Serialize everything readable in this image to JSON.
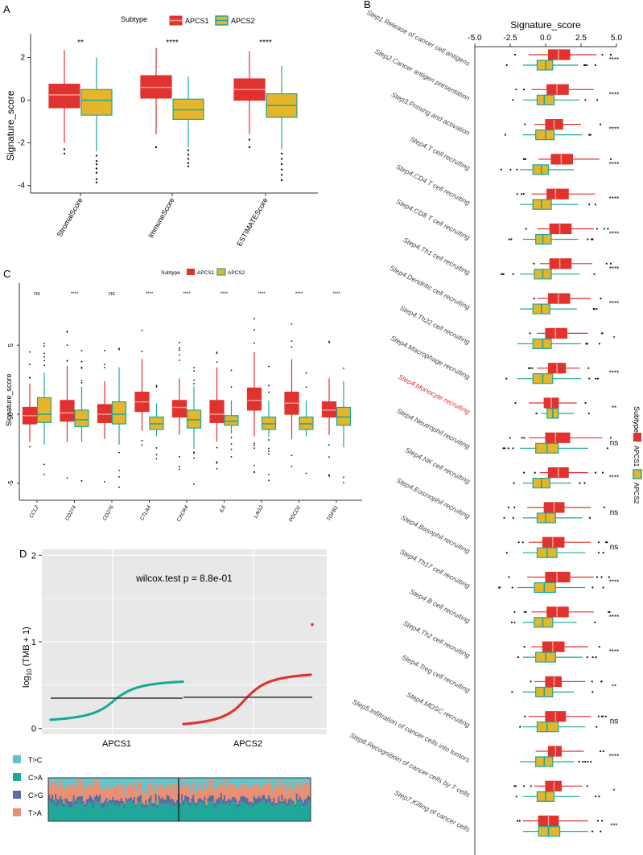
{
  "figure": {
    "colors": {
      "apcs1": "#e0322f",
      "apcs2": "#1ba89a",
      "box_fill2": "#e5b52c",
      "tc": "#63c4cc",
      "ca": "#1fa79a",
      "cg": "#5a6da0",
      "ta": "#eb8f72",
      "panel_bg": "#e8e8e8"
    }
  },
  "chart_data": [
    {
      "id": "A",
      "panel_label": "A",
      "type": "box",
      "legend_title": "Subtype",
      "legend": [
        "APCS1",
        "APCS2"
      ],
      "ylabel": "Signature_score",
      "ylim": [
        -4.2,
        3.0
      ],
      "yticks": [
        -4,
        -2,
        0,
        2
      ],
      "categories": [
        "StromalScore",
        "ImmuneScore",
        "ESTIMATEScore"
      ],
      "significance": [
        "**",
        "****",
        "****"
      ],
      "series": [
        {
          "name": "APCS1",
          "boxes": [
            [
              -2.0,
              -0.35,
              0.25,
              0.75,
              2.35
            ],
            [
              -1.6,
              0.1,
              0.6,
              1.15,
              2.45
            ],
            [
              -1.6,
              0.0,
              0.5,
              1.0,
              2.3
            ]
          ],
          "outliers": [
            [
              -2.3,
              -2.5
            ],
            [
              -2.2
            ],
            [
              -1.85,
              -2.2
            ]
          ]
        },
        {
          "name": "APCS2",
          "boxes": [
            [
              -2.4,
              -0.7,
              0.0,
              0.5,
              2.0
            ],
            [
              -2.2,
              -0.9,
              -0.45,
              0.05,
              1.1
            ],
            [
              -2.3,
              -0.8,
              -0.25,
              0.3,
              1.6
            ]
          ],
          "outliers": [
            [
              -2.6,
              -2.85,
              -3.0,
              -3.2,
              -3.4,
              -3.7,
              -3.85
            ],
            [
              -2.35,
              -2.55,
              -2.75,
              -2.95,
              -3.1
            ],
            [
              -2.5,
              -2.75,
              -3.0,
              -3.25,
              -3.5,
              -3.75
            ]
          ]
        }
      ]
    },
    {
      "id": "B",
      "panel_label": "B",
      "type": "horizontal-box",
      "title": "Signature_score",
      "xlim": [
        -5,
        5
      ],
      "xticks": [
        -5.0,
        -2.5,
        0.0,
        2.5,
        5.0
      ],
      "xtick_labels": [
        "-5.0",
        "-2.5",
        "0.0",
        "2.5",
        "5.0"
      ],
      "legend_title": "Subtype",
      "legend": [
        "APCS1",
        "APCS2"
      ],
      "highlighted": "Step4.Monocyte recruiting",
      "categories": [
        "Step1.Release of cancer cell antigens",
        "Step2.Cancer antigen presentation",
        "Step3.Priming and activation",
        "Step4.T cell recruiting",
        "Step4.CD4 T cell recruiting",
        "Step4.CD8 T cell recruiting",
        "Step4.Th1 cell recruiting",
        "Step4.Dendritic cell recruiting",
        "Step4.Th22 cell recruiting",
        "Step4.Macrophage recruiting",
        "Step4.Monocyte recruiting",
        "Step4.Neutrophil recruiting",
        "Step4.NK cell recruiting",
        "Step4.Eosinophil recruiting",
        "Step4.Basophil recruiting",
        "Step4.Th17 cell recruiting",
        "Step4.B cell recruiting",
        "Step4.Th2 cell recruiting",
        "Step4.Treg cell recruiting",
        "Step4.MDSC recruiting",
        "Step5.Infiltration of cancer cells into tumors",
        "Step6.Recognitioin of cancer cells by T cells",
        "Step7.Killing of cancer cells"
      ],
      "significance": [
        "****",
        "****",
        "****",
        "****",
        "****",
        "****",
        "****",
        "****",
        "*",
        "****",
        "**",
        "ns",
        "****",
        "ns",
        "ns",
        "****",
        "****",
        "****",
        "**",
        "ns",
        "****",
        "*",
        "***"
      ],
      "series": [
        {
          "name": "APCS1",
          "boxes": [
            [
              -1.2,
              0.2,
              0.9,
              1.7,
              3.6
            ],
            [
              -1.0,
              0.1,
              0.8,
              1.6,
              3.4
            ],
            [
              -0.8,
              0.0,
              0.6,
              1.2,
              2.5
            ],
            [
              -0.5,
              0.4,
              1.1,
              1.9,
              3.8
            ],
            [
              -1.0,
              0.1,
              0.7,
              1.6,
              3.5
            ],
            [
              -0.6,
              0.3,
              1.0,
              1.8,
              3.4
            ],
            [
              -0.4,
              0.3,
              1.0,
              1.8,
              3.3
            ],
            [
              -0.6,
              0.2,
              0.9,
              1.7,
              3.2
            ],
            [
              -0.6,
              0.0,
              0.7,
              1.5,
              3.0
            ],
            [
              -0.6,
              0.2,
              0.8,
              1.4,
              2.4
            ],
            [
              -1.2,
              -0.1,
              0.4,
              0.9,
              2.2
            ],
            [
              -1.2,
              0.0,
              0.7,
              1.7,
              4.0
            ],
            [
              -0.4,
              0.2,
              0.9,
              1.6,
              3.0
            ],
            [
              -1.3,
              -0.1,
              0.6,
              1.3,
              3.2
            ],
            [
              -1.2,
              -0.2,
              0.5,
              1.3,
              3.2
            ],
            [
              -1.3,
              0.0,
              0.8,
              1.7,
              3.4
            ],
            [
              -1.0,
              0.1,
              0.8,
              1.6,
              3.4
            ],
            [
              -1.0,
              -0.2,
              0.5,
              1.3,
              3.0
            ],
            [
              -0.8,
              0.0,
              0.6,
              1.1,
              2.8
            ],
            [
              -1.2,
              0.0,
              0.7,
              1.4,
              3.2
            ],
            [
              -0.7,
              0.2,
              0.7,
              1.1,
              2.7
            ],
            [
              -0.8,
              0.0,
              0.6,
              1.1,
              2.6
            ],
            [
              -1.6,
              -0.5,
              0.2,
              0.9,
              3.0
            ]
          ]
        },
        {
          "name": "APCS2",
          "boxes": [
            [
              -1.6,
              -0.6,
              0.0,
              0.5,
              2.3
            ],
            [
              -1.6,
              -0.6,
              -0.1,
              0.6,
              2.4
            ],
            [
              -1.6,
              -0.7,
              0.0,
              0.6,
              2.6
            ],
            [
              -1.8,
              -0.9,
              -0.3,
              0.2,
              2.0
            ],
            [
              -1.8,
              -0.9,
              -0.3,
              0.4,
              2.3
            ],
            [
              -1.6,
              -0.7,
              -0.2,
              0.4,
              2.3
            ],
            [
              -1.8,
              -0.8,
              -0.2,
              0.4,
              2.4
            ],
            [
              -1.8,
              -0.9,
              -0.3,
              0.3,
              2.2
            ],
            [
              -2.0,
              -0.9,
              -0.2,
              0.4,
              2.5
            ],
            [
              -2.0,
              -0.9,
              -0.2,
              0.5,
              2.5
            ],
            [
              -0.3,
              0.1,
              0.5,
              0.9,
              2.0
            ],
            [
              -1.8,
              -0.7,
              0.1,
              0.9,
              3.0
            ],
            [
              -1.6,
              -0.9,
              -0.3,
              0.3,
              1.8
            ],
            [
              -1.6,
              -0.6,
              0.0,
              0.7,
              2.6
            ],
            [
              -1.6,
              -0.6,
              0.1,
              0.8,
              2.8
            ],
            [
              -2.0,
              -0.8,
              -0.1,
              0.7,
              2.8
            ],
            [
              -1.6,
              -0.8,
              -0.2,
              0.5,
              2.2
            ],
            [
              -1.6,
              -0.7,
              0.0,
              0.7,
              2.6
            ],
            [
              -1.6,
              -0.7,
              -0.1,
              0.5,
              2.0
            ],
            [
              -1.6,
              -0.6,
              0.1,
              0.9,
              2.8
            ],
            [
              -1.8,
              -0.7,
              -0.1,
              0.5,
              2.0
            ],
            [
              -1.6,
              -0.6,
              0.0,
              0.6,
              2.4
            ],
            [
              -1.6,
              -0.5,
              0.2,
              1.0,
              3.0
            ]
          ]
        }
      ]
    },
    {
      "id": "C",
      "panel_label": "C",
      "type": "box",
      "legend_title": "Subtype",
      "legend": [
        "APCS1",
        "APCS2"
      ],
      "ylabel": "Signature_score",
      "ylim": [
        -6.0,
        9.5
      ],
      "yticks": [
        -5,
        0,
        5
      ],
      "categories": [
        "CCL2",
        "CD274",
        "CD276",
        "CTLA4",
        "CXCR4",
        "IL6",
        "LAG3",
        "PDCD1",
        "TGFB1"
      ],
      "significance": [
        "ns",
        "****",
        "ns",
        "****",
        "****",
        "****",
        "****",
        "****",
        "****"
      ],
      "series": [
        {
          "name": "APCS1",
          "boxes": [
            [
              -2.0,
              -0.7,
              -0.1,
              0.5,
              2.2
            ],
            [
              -2.0,
              -0.5,
              0.1,
              1.0,
              3.5
            ],
            [
              -1.8,
              -0.6,
              0.0,
              0.7,
              2.4
            ],
            [
              -1.2,
              0.2,
              0.9,
              1.6,
              4.0
            ],
            [
              -1.5,
              -0.2,
              0.5,
              1.0,
              2.6
            ],
            [
              -2.0,
              -0.6,
              0.0,
              1.0,
              3.4
            ],
            [
              -1.6,
              0.3,
              1.0,
              1.9,
              4.5
            ],
            [
              -1.8,
              0.0,
              0.8,
              1.6,
              4.0
            ],
            [
              -1.5,
              -0.2,
              0.3,
              0.9,
              2.6
            ]
          ]
        },
        {
          "name": "APCS2",
          "boxes": [
            [
              -2.2,
              -0.6,
              0.0,
              1.2,
              3.0
            ],
            [
              -2.0,
              -0.9,
              -0.4,
              0.3,
              2.0
            ],
            [
              -2.2,
              -0.7,
              0.0,
              0.9,
              3.4
            ],
            [
              -1.6,
              -1.1,
              -0.7,
              -0.2,
              0.8
            ],
            [
              -2.5,
              -1.0,
              -0.4,
              0.3,
              2.0
            ],
            [
              -1.4,
              -0.8,
              -0.5,
              -0.1,
              1.0
            ],
            [
              -1.6,
              -1.1,
              -0.7,
              -0.2,
              1.0
            ],
            [
              -1.6,
              -1.1,
              -0.7,
              -0.2,
              1.0
            ],
            [
              -2.4,
              -0.8,
              -0.2,
              0.5,
              2.4
            ]
          ]
        }
      ]
    },
    {
      "id": "D",
      "panel_label": "D",
      "type": "scatter",
      "annotation": "wilcox.test p = 8.8e-01",
      "ylabel": "log10 (TMB + 1)",
      "ylabel_main": "log",
      "ylabel_sub": "10",
      "ylabel_rest": " (TMB + 1)",
      "ylim": [
        -0.05,
        2.05
      ],
      "yticks": [
        0,
        1,
        2
      ],
      "groups": [
        "APCS1",
        "APCS2"
      ],
      "group_medians": [
        0.35,
        0.36
      ],
      "apcs1_range": [
        0.1,
        0.54
      ],
      "apcs2_range": [
        0.05,
        0.62
      ],
      "apcs2_max_outlier": 1.2
    },
    {
      "id": "D2",
      "type": "stacked-bar",
      "legend": [
        "T>C",
        "C>A",
        "C>G",
        "T>A"
      ],
      "description_of_order": "bottom to top: C>A, C>G, T>A, T>C"
    }
  ]
}
